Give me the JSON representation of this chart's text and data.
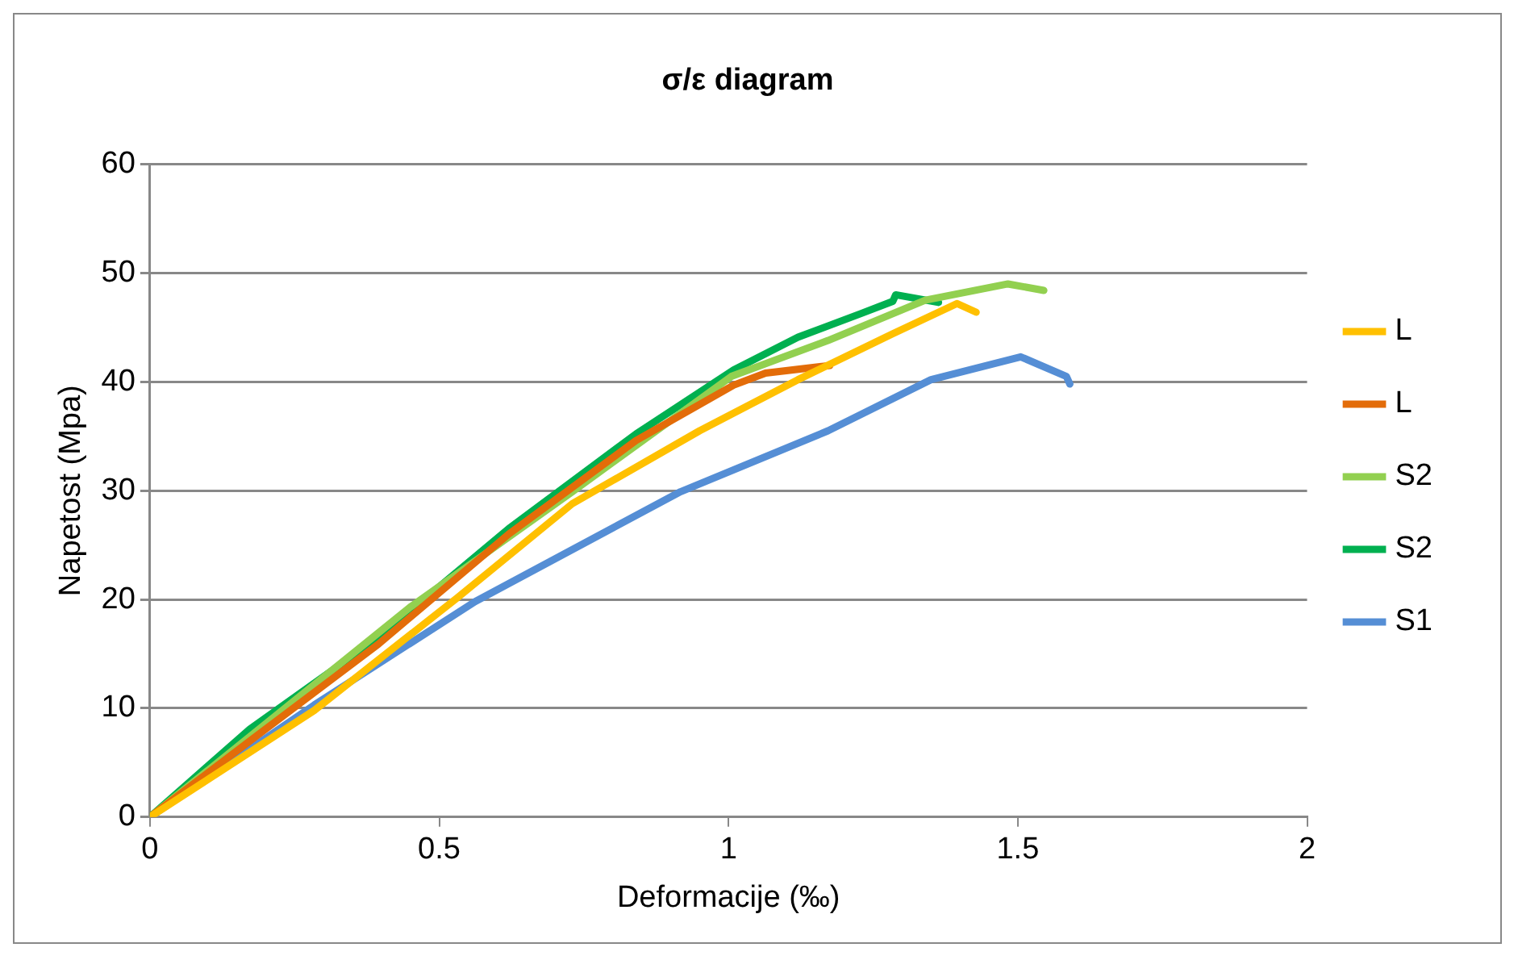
{
  "chart_data": {
    "type": "line",
    "title": "σ/ε diagram",
    "xlabel": "Deformacije (‰)",
    "ylabel": "Napetost (Mpa)",
    "xlim": [
      0,
      2
    ],
    "xticks": [
      0,
      0.5,
      1,
      1.5,
      2
    ],
    "ylim": [
      0,
      60
    ],
    "yticks": [
      0,
      10,
      20,
      30,
      40,
      50,
      60
    ],
    "grid": "y",
    "legend": "right",
    "marker": "none",
    "line_style": "solid",
    "series": [
      {
        "name": "L",
        "color": "#ffc000",
        "x": [
          0,
          0.284,
          0.53,
          0.73,
          0.95,
          1.12,
          1.283,
          1.395,
          1.428
        ],
        "values": [
          0,
          9.8,
          20.1,
          28.8,
          35.5,
          40.2,
          44.4,
          47.2,
          46.4
        ]
      },
      {
        "name": "L",
        "color": "#e36c09",
        "x": [
          0,
          0.173,
          0.395,
          0.62,
          0.84,
          1.009,
          1.064,
          1.175
        ],
        "values": [
          0,
          7,
          15.9,
          26,
          34.6,
          39.7,
          40.8,
          41.5
        ]
      },
      {
        "name": "S2",
        "color": "#92d050",
        "x": [
          0,
          0.229,
          0.45,
          0.73,
          1.005,
          1.172,
          1.34,
          1.483,
          1.545
        ],
        "values": [
          0,
          9.8,
          19.3,
          29.9,
          40.5,
          43.8,
          47.5,
          49,
          48.4
        ]
      },
      {
        "name": "S2",
        "color": "#00b050",
        "x": [
          0,
          0.173,
          0.395,
          0.62,
          0.84,
          1.009,
          1.12,
          1.23,
          1.284,
          1.289,
          1.363
        ],
        "values": [
          0,
          8.1,
          16.5,
          26.5,
          35.2,
          41.1,
          44.1,
          46.3,
          47.4,
          48,
          47.3
        ]
      },
      {
        "name": "S1",
        "color": "#558ed5",
        "x": [
          0,
          0.284,
          0.562,
          0.917,
          1.172,
          1.35,
          1.505,
          1.584,
          1.59
        ],
        "values": [
          0,
          10.3,
          19.8,
          29.9,
          35.5,
          40.2,
          42.3,
          40.5,
          39.8
        ]
      }
    ]
  }
}
